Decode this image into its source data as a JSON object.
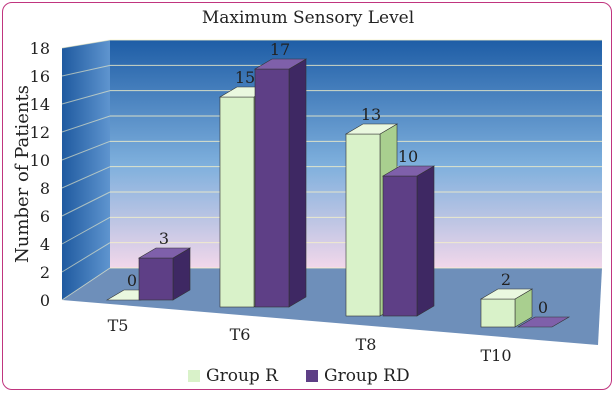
{
  "chart_data": {
    "type": "bar",
    "title": "Maximum Sensory Level",
    "ylabel": "Number of Patients",
    "xlabel": "",
    "ylim": [
      0,
      18
    ],
    "yticks": [
      0,
      2,
      4,
      6,
      8,
      10,
      12,
      14,
      16,
      18
    ],
    "categories": [
      "T5",
      "T6",
      "T8",
      "T10"
    ],
    "series": [
      {
        "name": "Group R",
        "values": [
          0,
          15,
          13,
          2
        ]
      },
      {
        "name": "Group RD",
        "values": [
          3,
          17,
          10,
          0
        ]
      }
    ],
    "legend_position": "bottom",
    "grid": true,
    "colors": {
      "group_r_front": "#d9f2c9",
      "group_r_side": "#a9cf8f",
      "group_r_top": "#eaf8df",
      "group_rd_front": "#5e3f86",
      "group_rd_side": "#3e2863",
      "group_rd_top": "#7f60aa",
      "wall_top": "#1e5da6",
      "wall_bottom": "#f2d7ea",
      "floor": "#6e8fba",
      "frame": "#c0357f"
    }
  }
}
